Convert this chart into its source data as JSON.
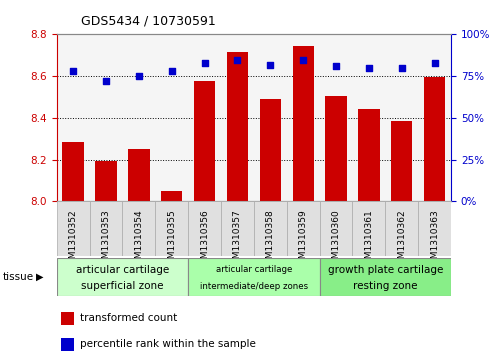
{
  "title": "GDS5434 / 10730591",
  "samples": [
    "GSM1310352",
    "GSM1310353",
    "GSM1310354",
    "GSM1310355",
    "GSM1310356",
    "GSM1310357",
    "GSM1310358",
    "GSM1310359",
    "GSM1310360",
    "GSM1310361",
    "GSM1310362",
    "GSM1310363"
  ],
  "bar_values": [
    8.285,
    8.195,
    8.25,
    8.05,
    8.575,
    8.715,
    8.49,
    8.745,
    8.505,
    8.445,
    8.385,
    8.595
  ],
  "percentile_values": [
    78,
    72,
    75,
    78,
    83,
    85,
    82,
    85,
    81,
    80,
    80,
    83
  ],
  "bar_color": "#cc0000",
  "dot_color": "#0000cc",
  "ylim_left": [
    8.0,
    8.8
  ],
  "ylim_right": [
    0,
    100
  ],
  "yticks_left": [
    8.0,
    8.2,
    8.4,
    8.6,
    8.8
  ],
  "yticks_right": [
    0,
    25,
    50,
    75,
    100
  ],
  "groups": [
    {
      "label": "articular cartilage\nsuperficial zone",
      "start": 0,
      "end": 4,
      "color": "#ccffcc",
      "label_fontsize": 7.5
    },
    {
      "label": "articular cartilage\nintermediate/deep zones",
      "start": 4,
      "end": 8,
      "color": "#aaffaa",
      "label_fontsize": 6.2
    },
    {
      "label": "growth plate cartilage\nresting zone",
      "start": 8,
      "end": 12,
      "color": "#88ee88",
      "label_fontsize": 7.5
    }
  ],
  "tissue_label": "tissue",
  "legend_bar_label": "transformed count",
  "legend_dot_label": "percentile rank within the sample",
  "bar_width": 0.65,
  "background_color": "#ffffff",
  "plot_facecolor": "#f5f5f5",
  "title_fontsize": 9,
  "tick_fontsize": 7.5,
  "xtick_fontsize": 6.5
}
